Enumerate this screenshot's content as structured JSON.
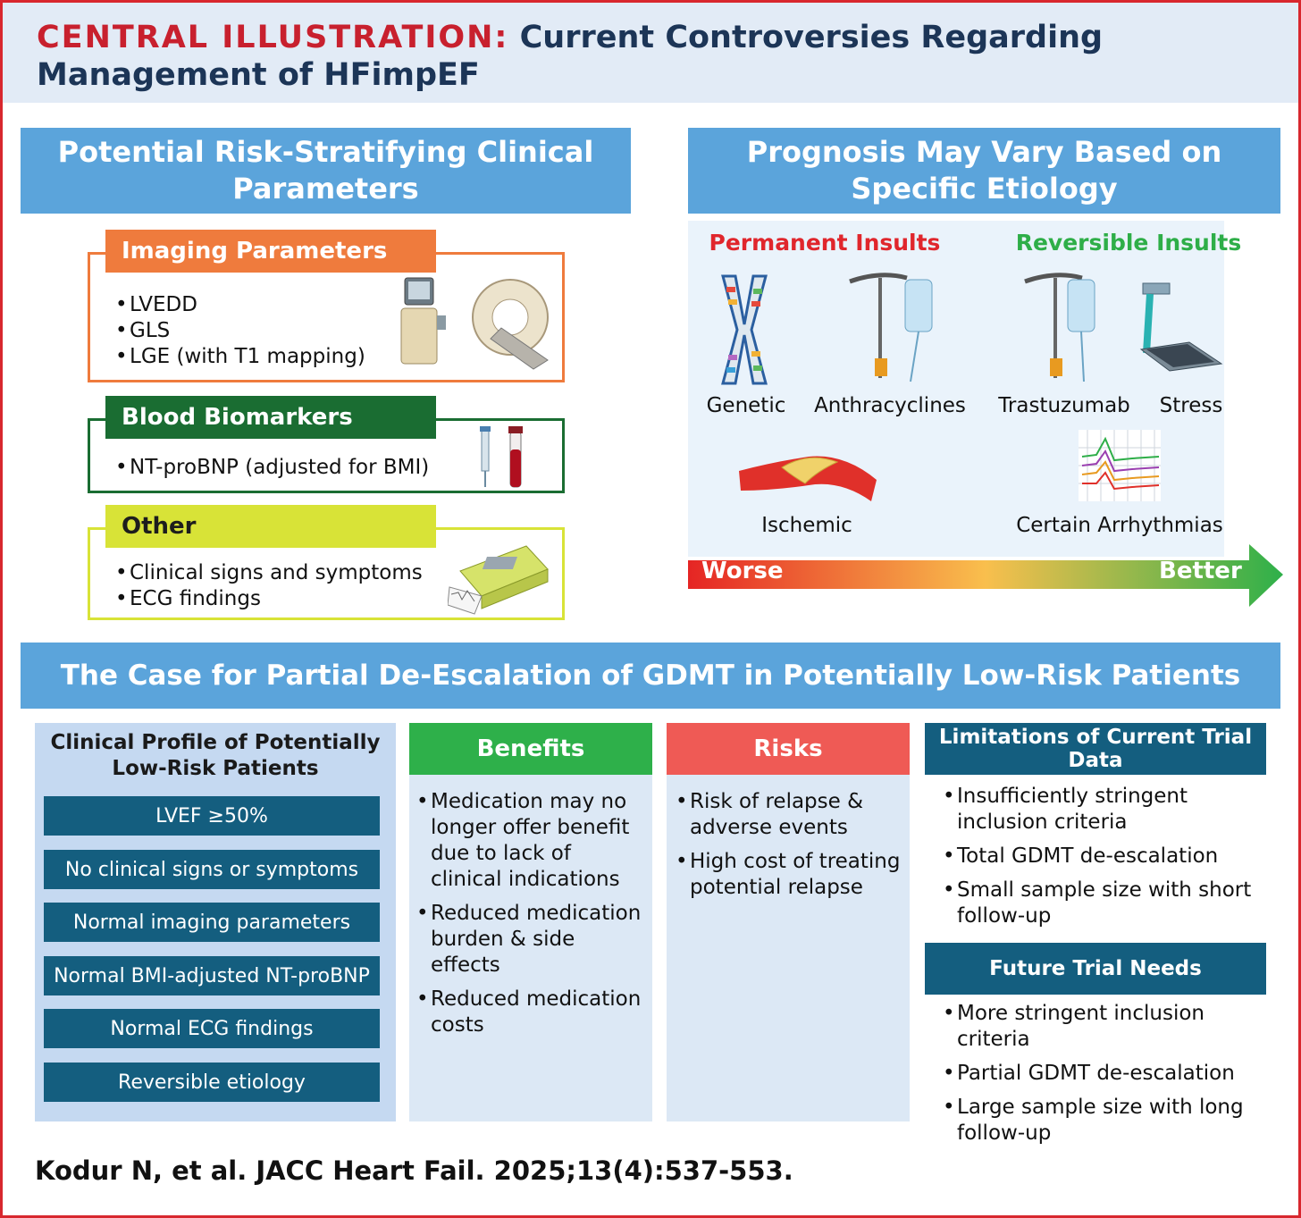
{
  "header": {
    "label": "CENTRAL ILLUSTRATION:",
    "title_line1": "Current Controversies Regarding",
    "title_line2": "Management of HFimpEF"
  },
  "left_panel": {
    "title_line1": "Potential Risk-Stratifying Clinical",
    "title_line2": "Parameters",
    "sections": [
      {
        "title": "Imaging Parameters",
        "color": "#ef7b3d",
        "items": [
          "LVEDD",
          "GLS",
          "LGE (with T1 mapping)"
        ]
      },
      {
        "title": "Blood Biomarkers",
        "color": "#1a6d32",
        "items": [
          "NT-proBNP (adjusted for BMI)"
        ]
      },
      {
        "title": "Other",
        "color": "#d8e337",
        "items": [
          "Clinical signs and symptoms",
          "ECG findings"
        ]
      }
    ]
  },
  "right_panel": {
    "title_line1": "Prognosis May Vary Based on",
    "title_line2": "Specific Etiology",
    "permanent_label": "Permanent Insults",
    "reversible_label": "Reversible Insults",
    "etiologies": {
      "genetic": "Genetic",
      "anthracyclines": "Anthracyclines",
      "trastuzumab": "Trastuzumab",
      "stress": "Stress",
      "ischemic": "Ischemic",
      "arrhythmias": "Certain Arrhythmias"
    },
    "scale_worse": "Worse",
    "scale_better": "Better",
    "colors": {
      "permanent": "#e0262c",
      "reversible": "#2eae48"
    }
  },
  "bottom_panel": {
    "title": "The Case for Partial De-Escalation of GDMT in Potentially Low-Risk Patients",
    "profile": {
      "title_line1": "Clinical Profile of Potentially",
      "title_line2": "Low-Risk Patients",
      "items": [
        "LVEF ≥50%",
        "No clinical signs or symptoms",
        "Normal imaging parameters",
        "Normal BMI-adjusted NT-proBNP",
        "Normal ECG findings",
        "Reversible etiology"
      ]
    },
    "benefits": {
      "title": "Benefits",
      "items": [
        "Medication may no longer offer benefit due to lack of clinical indications",
        "Reduced medication burden & side effects",
        "Reduced medication costs"
      ]
    },
    "risks": {
      "title": "Risks",
      "items": [
        "Risk of relapse & adverse events",
        "High cost of treating potential relapse"
      ]
    },
    "limitations": {
      "title": "Limitations of Current Trial Data",
      "items": [
        "Insufficiently stringent inclusion criteria",
        "Total GDMT de-escalation",
        "Small sample size with short follow-up"
      ]
    },
    "future": {
      "title": "Future Trial Needs",
      "items": [
        "More stringent inclusion criteria",
        "Partial GDMT de-escalation",
        "Large sample size with long follow-up"
      ]
    }
  },
  "citation": "Kodur N, et al. JACC Heart Fail. 2025;13(4):537-553."
}
